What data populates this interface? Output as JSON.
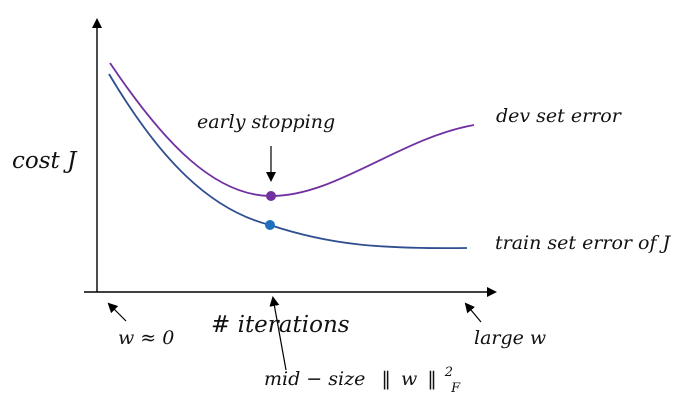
{
  "diagram": {
    "y_axis_label": "cost J",
    "x_axis_label": "# iterations",
    "annotations": {
      "early_stopping": "early stopping",
      "left_end": "w ≈ 0",
      "right_end": "large w",
      "middle": {
        "prefix": "mid − size",
        "norm_open": "‖",
        "var": "w",
        "norm_close": "‖",
        "superscript": "2",
        "subscript": "F"
      }
    },
    "curves": [
      {
        "name": "dev set error",
        "color": "#7030a0",
        "marker_color": "#7030a0"
      },
      {
        "name": "train set error of J",
        "color": "#2f4f8f",
        "marker_color": "#1f6fbf"
      }
    ],
    "axis_color": "#000000"
  }
}
